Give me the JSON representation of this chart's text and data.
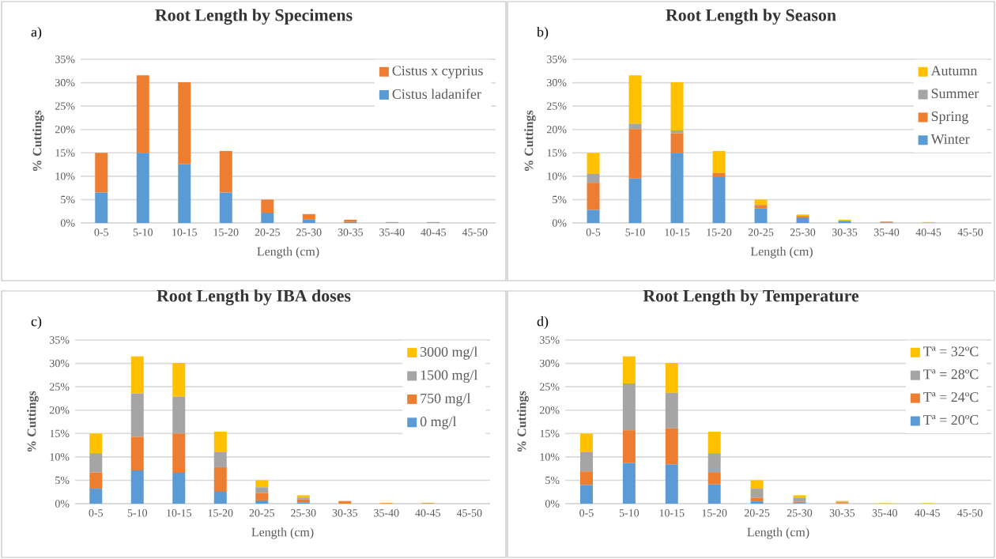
{
  "chart_data": [
    {
      "type": "bar",
      "stacked": true,
      "title": "Root Length by Specimens",
      "xlabel": "Length (cm)",
      "ylabel": "% Cuttings",
      "annotations": [
        "a)"
      ],
      "categories": [
        "0-5",
        "5-10",
        "10-15",
        "15-20",
        "20-25",
        "25-30",
        "30-35",
        "35-40",
        "40-45",
        "45-50"
      ],
      "ylim": [
        0,
        35
      ],
      "yticks": [
        {
          "value": 0,
          "label": "0%"
        },
        {
          "value": 5,
          "label": "5%"
        },
        {
          "value": 10,
          "label": "10%"
        },
        {
          "value": 15,
          "label": "15%"
        },
        {
          "value": 20,
          "label": "20%"
        },
        {
          "value": 25,
          "label": "25%"
        },
        {
          "value": 30,
          "label": "30%"
        },
        {
          "value": 35,
          "label": "35%"
        }
      ],
      "grid": "y",
      "legend": "top right",
      "series": [
        {
          "name": "Cistus ladanifer",
          "color": "#5b9bd5",
          "values": [
            6.5,
            15.0,
            12.6,
            6.5,
            2.2,
            0.8,
            0.2,
            0.1,
            0.1,
            0
          ]
        },
        {
          "name": "Cistus x cyprius",
          "color": "#ed7d31",
          "values": [
            8.5,
            16.6,
            17.5,
            8.9,
            2.8,
            1.1,
            0.5,
            0.1,
            0.1,
            0
          ]
        }
      ]
    },
    {
      "type": "bar",
      "stacked": true,
      "title": "Root Length by Season",
      "xlabel": "Length (cm)",
      "ylabel": "% Cuttings",
      "annotations": [
        "b)"
      ],
      "categories": [
        "0-5",
        "5-10",
        "10-15",
        "15-20",
        "20-25",
        "25-30",
        "30-35",
        "35-40",
        "40-45",
        "45-50"
      ],
      "ylim": [
        0,
        35
      ],
      "yticks": [
        {
          "value": 0,
          "label": "0%"
        },
        {
          "value": 5,
          "label": "5%"
        },
        {
          "value": 10,
          "label": "10%"
        },
        {
          "value": 15,
          "label": "15%"
        },
        {
          "value": 20,
          "label": "20%"
        },
        {
          "value": 25,
          "label": "25%"
        },
        {
          "value": 30,
          "label": "30%"
        },
        {
          "value": 35,
          "label": "35%"
        }
      ],
      "grid": "y",
      "legend": "top right",
      "series": [
        {
          "name": "Winter",
          "color": "#5b9bd5",
          "values": [
            2.8,
            9.5,
            15.0,
            9.8,
            3.1,
            1.2,
            0.4,
            0.1,
            0,
            0
          ]
        },
        {
          "name": "Spring",
          "color": "#ed7d31",
          "values": [
            5.8,
            10.6,
            4.2,
            0.9,
            0.6,
            0.3,
            0.1,
            0.2,
            0,
            0
          ]
        },
        {
          "name": "Summer",
          "color": "#a5a5a5",
          "values": [
            1.9,
            1.1,
            0.6,
            0,
            0.2,
            null,
            0,
            0,
            0,
            0
          ]
        },
        {
          "name": "Autumn",
          "color": "#ffc000",
          "values": [
            4.5,
            10.4,
            10.3,
            4.7,
            1.1,
            0.3,
            0.2,
            null,
            0.2,
            0
          ]
        }
      ]
    },
    {
      "type": "bar",
      "stacked": true,
      "title": "Root Length by IBA doses",
      "xlabel": "Length (cm)",
      "ylabel": "% Cuttings",
      "annotations": [
        "c)"
      ],
      "categories": [
        "0-5",
        "5-10",
        "10-15",
        "15-20",
        "20-25",
        "25-30",
        "30-35",
        "35-40",
        "40-45",
        "45-50"
      ],
      "ylim": [
        0,
        35
      ],
      "yticks": [
        {
          "value": 0,
          "label": "0%"
        },
        {
          "value": 5,
          "label": "5%"
        },
        {
          "value": 10,
          "label": "10%"
        },
        {
          "value": 15,
          "label": "15%"
        },
        {
          "value": 20,
          "label": "20%"
        },
        {
          "value": 25,
          "label": "25%"
        },
        {
          "value": 30,
          "label": "30%"
        },
        {
          "value": 35,
          "label": "35%"
        }
      ],
      "grid": "y",
      "legend": "top right",
      "series": [
        {
          "name": "0 mg/l",
          "color": "#5b9bd5",
          "values": [
            3.2,
            7.1,
            6.6,
            2.7,
            0.7,
            0.3,
            0,
            0,
            0,
            0
          ]
        },
        {
          "name": "750 mg/l",
          "color": "#ed7d31",
          "values": [
            3.5,
            7.2,
            8.4,
            5.1,
            1.6,
            0.6,
            0.5,
            0.1,
            0.1,
            0
          ]
        },
        {
          "name": "1500 mg/l",
          "color": "#a5a5a5",
          "values": [
            4.1,
            9.3,
            7.9,
            3.2,
            1.2,
            0.4,
            0,
            0,
            0,
            0
          ]
        },
        {
          "name": "3000 mg/l",
          "color": "#ffc000",
          "values": [
            4.2,
            7.9,
            7.2,
            4.4,
            1.5,
            0.5,
            0.1,
            0.1,
            0.1,
            0
          ]
        }
      ]
    },
    {
      "type": "bar",
      "stacked": true,
      "title": "Root Length by Temperature",
      "xlabel": "Length (cm)",
      "ylabel": "% Cuttings",
      "annotations": [
        "d)"
      ],
      "categories": [
        "0-5",
        "5-10",
        "10-15",
        "15-20",
        "20-25",
        "25-30",
        "30-35",
        "35-40",
        "40-45",
        "45-50"
      ],
      "ylim": [
        0,
        35
      ],
      "yticks": [
        {
          "value": 0,
          "label": "0%"
        },
        {
          "value": 5,
          "label": "5%"
        },
        {
          "value": 10,
          "label": "10%"
        },
        {
          "value": 15,
          "label": "15%"
        },
        {
          "value": 20,
          "label": "20%"
        },
        {
          "value": 25,
          "label": "25%"
        },
        {
          "value": 30,
          "label": "30%"
        },
        {
          "value": 35,
          "label": "35%"
        }
      ],
      "grid": "y",
      "legend": "top right",
      "series": [
        {
          "name": "Tª = 20ºC",
          "color": "#5b9bd5",
          "values": [
            4.0,
            8.7,
            8.4,
            4.1,
            0.5,
            0.1,
            0,
            0,
            0,
            0
          ]
        },
        {
          "name": "Tª = 24ºC",
          "color": "#ed7d31",
          "values": [
            2.9,
            7.0,
            7.7,
            2.5,
            0.8,
            0.3,
            0.1,
            0,
            0,
            0
          ]
        },
        {
          "name": "Tª = 28ºC",
          "color": "#a5a5a5",
          "values": [
            4.1,
            10.0,
            7.6,
            4.2,
            1.9,
            0.9,
            0.3,
            null,
            null,
            0
          ]
        },
        {
          "name": "Tª = 32ºC",
          "color": "#ffc000",
          "values": [
            4.0,
            5.8,
            6.4,
            4.6,
            1.8,
            0.5,
            0.2,
            0.1,
            0.1,
            0
          ]
        }
      ]
    }
  ]
}
